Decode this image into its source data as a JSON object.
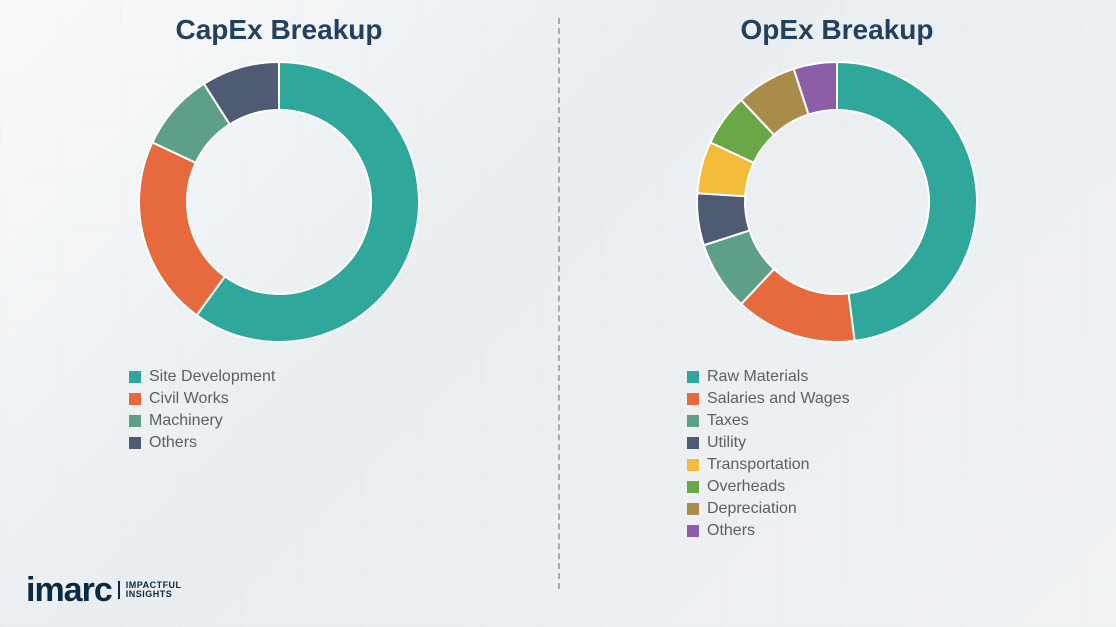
{
  "background_color": "#f0f2f4",
  "divider_color": "#9aa1a8",
  "title_color": "#23405c",
  "title_fontsize": 28,
  "legend_text_color": "#5b6066",
  "legend_fontsize": 16,
  "donut": {
    "outer_radius": 140,
    "inner_radius": 92,
    "start_angle_deg": 0,
    "gap_color": "#ffffff",
    "gap_width": 2
  },
  "charts": [
    {
      "title": "CapEx Breakup",
      "segments": [
        {
          "label": "Site Development",
          "value": 60,
          "color": "#2fa79a"
        },
        {
          "label": "Civil Works",
          "value": 22,
          "color": "#e66a3e"
        },
        {
          "label": "Machinery",
          "value": 9,
          "color": "#5d9f87"
        },
        {
          "label": "Others",
          "value": 9,
          "color": "#4f5a73"
        }
      ]
    },
    {
      "title": "OpEx Breakup",
      "segments": [
        {
          "label": "Raw Materials",
          "value": 48,
          "color": "#2fa79a"
        },
        {
          "label": "Salaries and Wages",
          "value": 14,
          "color": "#e66a3e"
        },
        {
          "label": "Taxes",
          "value": 8,
          "color": "#5d9f87"
        },
        {
          "label": "Utility",
          "value": 6,
          "color": "#4f5a73"
        },
        {
          "label": "Transportation",
          "value": 6,
          "color": "#f2bb3a"
        },
        {
          "label": "Overheads",
          "value": 6,
          "color": "#6aa847"
        },
        {
          "label": "Depreciation",
          "value": 7,
          "color": "#a98c4a"
        },
        {
          "label": "Others",
          "value": 5,
          "color": "#8b5fa8"
        }
      ]
    }
  ],
  "logo": {
    "word_pre": "imarc",
    "tagline_line1": "IMPACTFUL",
    "tagline_line2": "INSIGHTS",
    "word_color": "#0a2a43",
    "accent_color": "#2bb0a8"
  }
}
